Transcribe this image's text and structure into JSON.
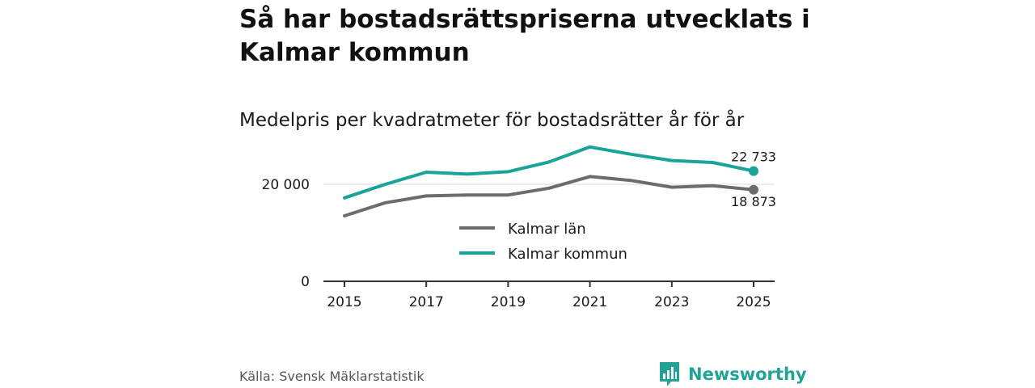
{
  "title": "Så har bostadsrättspriserna utvecklats i Kalmar kommun",
  "subtitle": "Medelpris per kvadratmeter för bostadsrätter år för år",
  "source": "Källa: Svensk Mäklarstatistik",
  "brand": "Newsworthy",
  "chart_data": {
    "type": "line",
    "title": "Så har bostadsrättspriserna utvecklats i Kalmar kommun",
    "subtitle": "Medelpris per kvadratmeter för bostadsrätter år för år",
    "xlabel": "",
    "ylabel": "",
    "x": [
      2015,
      2016,
      2017,
      2018,
      2019,
      2020,
      2021,
      2022,
      2023,
      2024,
      2025
    ],
    "x_ticks": [
      "2015",
      "2017",
      "2019",
      "2021",
      "2023",
      "2025"
    ],
    "y_ticks": [
      {
        "value": 0,
        "label": "0"
      },
      {
        "value": 20000,
        "label": "20 000"
      }
    ],
    "ylim": [
      0,
      26000
    ],
    "grid": true,
    "series": [
      {
        "name": "Kalmar län",
        "color": "#6d6b70",
        "values": [
          13500,
          16200,
          17600,
          17800,
          17800,
          19200,
          21600,
          20800,
          19400,
          19700,
          18873
        ],
        "end_label": "18 873"
      },
      {
        "name": "Kalmar kommun",
        "color": "#1aa398",
        "values": [
          17200,
          20000,
          22500,
          22100,
          22600,
          24600,
          27700,
          26200,
          24900,
          24500,
          22733
        ],
        "end_label": "22 733"
      }
    ]
  }
}
